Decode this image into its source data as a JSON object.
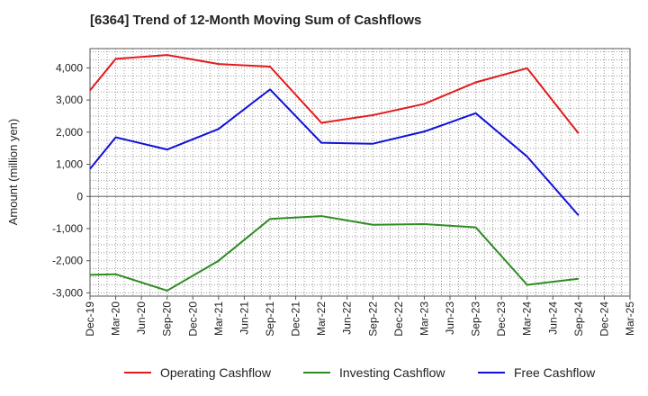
{
  "chart_data": {
    "type": "line",
    "title": "[6364]  Trend of 12-Month Moving Sum of Cashflows",
    "xlabel": "",
    "ylabel": "Amount (million yen)",
    "ylim": [
      -3100,
      4600
    ],
    "yticks": [
      4000,
      3000,
      2000,
      1000,
      0,
      -1000,
      -2000,
      -3000
    ],
    "ytick_labels": [
      "4,000",
      "3,000",
      "2,000",
      "1,000",
      "0",
      "-1,000",
      "-2,000",
      "-3,000"
    ],
    "categories": [
      "Dec-19",
      "Mar-20",
      "Jun-20",
      "Sep-20",
      "Dec-20",
      "Mar-21",
      "Jun-21",
      "Sep-21",
      "Dec-21",
      "Mar-22",
      "Jun-22",
      "Sep-22",
      "Dec-22",
      "Mar-23",
      "Jun-23",
      "Sep-23",
      "Dec-23",
      "Mar-24",
      "Jun-24",
      "Sep-24",
      "Dec-24",
      "Mar-25"
    ],
    "series": [
      {
        "name": "Operating Cashflow",
        "color": "#e31a1c",
        "x": [
          "Dec-19",
          "Mar-20",
          "Sep-20",
          "Mar-21",
          "Sep-21",
          "Mar-22",
          "Sep-22",
          "Mar-23",
          "Sep-23",
          "Mar-24",
          "Sep-24"
        ],
        "values": [
          3300,
          4280,
          4400,
          4120,
          4040,
          2290,
          2530,
          2880,
          3550,
          3990,
          1960
        ]
      },
      {
        "name": "Investing Cashflow",
        "color": "#2e8b22",
        "x": [
          "Dec-19",
          "Mar-20",
          "Sep-20",
          "Mar-21",
          "Sep-21",
          "Mar-22",
          "Sep-22",
          "Mar-23",
          "Sep-23",
          "Mar-24",
          "Sep-24"
        ],
        "values": [
          -2440,
          -2420,
          -2930,
          -2000,
          -700,
          -610,
          -880,
          -860,
          -960,
          -2750,
          -2560
        ]
      },
      {
        "name": "Free Cashflow",
        "color": "#1010d8",
        "x": [
          "Dec-19",
          "Mar-20",
          "Sep-20",
          "Mar-21",
          "Sep-21",
          "Mar-22",
          "Sep-22",
          "Mar-23",
          "Sep-23",
          "Mar-24",
          "Sep-24"
        ],
        "values": [
          860,
          1840,
          1460,
          2100,
          3330,
          1670,
          1640,
          2020,
          2590,
          1240,
          -590
        ]
      }
    ],
    "grid": true,
    "legend_position": "bottom"
  }
}
